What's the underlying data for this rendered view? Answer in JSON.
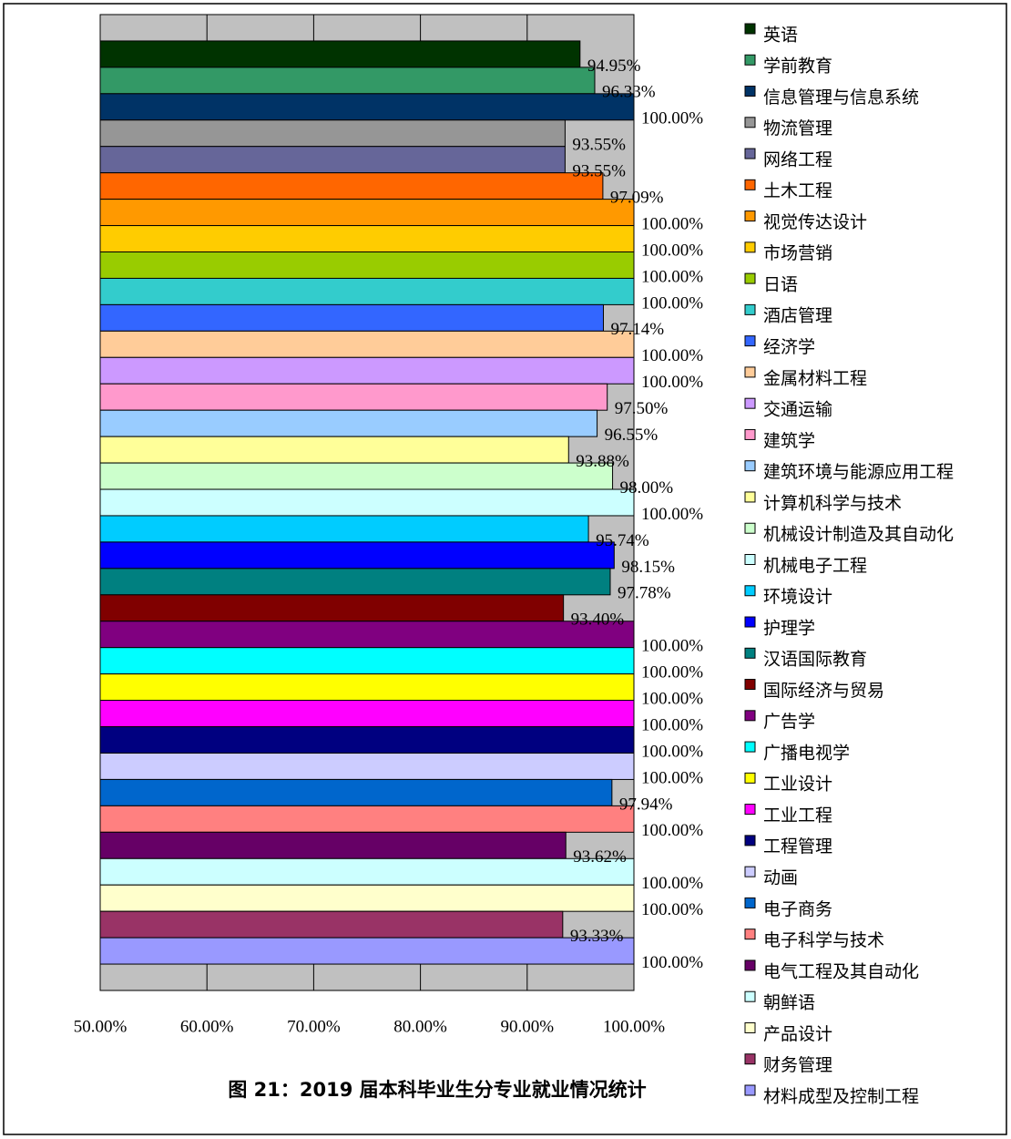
{
  "chart_data": {
    "type": "bar",
    "orientation": "horizontal",
    "title": "图 21：2019 届本科毕业生分专业就业情况统计",
    "categories": [
      "英语",
      "学前教育",
      "信息管理与信息系统",
      "物流管理",
      "网络工程",
      "土木工程",
      "视觉传达设计",
      "市场营销",
      "日语",
      "酒店管理",
      "经济学",
      "金属材料工程",
      "交通运输",
      "建筑学",
      "建筑环境与能源应用工程",
      "计算机科学与技术",
      "机械设计制造及其自动化",
      "机械电子工程",
      "环境设计",
      "护理学",
      "汉语国际教育",
      "国际经济与贸易",
      "广告学",
      "广播电视学",
      "工业设计",
      "工业工程",
      "工程管理",
      "动画",
      "电子商务",
      "电子科学与技术",
      "电气工程及其自动化",
      "朝鲜语",
      "产品设计",
      "财务管理",
      "材料成型及控制工程"
    ],
    "values": [
      94.95,
      96.33,
      100,
      93.55,
      93.55,
      97.09,
      100,
      100,
      100,
      100,
      97.14,
      100,
      100,
      97.5,
      96.55,
      93.88,
      98,
      100,
      95.74,
      98.15,
      97.78,
      93.4,
      100,
      100,
      100,
      100,
      100,
      100,
      97.94,
      100,
      93.62,
      100,
      100,
      93.33,
      100
    ],
    "value_labels": [
      "94.95%",
      "96.33%",
      "100.00%",
      "93.55%",
      "93.55%",
      "97.09%",
      "100.00%",
      "100.00%",
      "100.00%",
      "100.00%",
      "97.14%",
      "100.00%",
      "100.00%",
      "97.50%",
      "96.55%",
      "93.88%",
      "98.00%",
      "100.00%",
      "95.74%",
      "98.15%",
      "97.78%",
      "93.40%",
      "100.00%",
      "100.00%",
      "100.00%",
      "100.00%",
      "100.00%",
      "100.00%",
      "97.94%",
      "100.00%",
      "93.62%",
      "100.00%",
      "100.00%",
      "93.33%",
      "100.00%"
    ],
    "colors": [
      "#003300",
      "#339966",
      "#003366",
      "#969696",
      "#666699",
      "#FF6600",
      "#FF9900",
      "#FFCC00",
      "#99CC00",
      "#33CCCC",
      "#3366FF",
      "#FFCC99",
      "#CC99FF",
      "#FF99CC",
      "#99CCFF",
      "#FFFF99",
      "#CCFFCC",
      "#CCFFFF",
      "#00CCFF",
      "#0000FF",
      "#008080",
      "#800000",
      "#800080",
      "#00FFFF",
      "#FFFF00",
      "#FF00FF",
      "#000080",
      "#CCCCFF",
      "#0066CC",
      "#FF8080",
      "#660066",
      "#CCFFFF",
      "#FFFFCC",
      "#993366",
      "#9999FF"
    ],
    "xlim": [
      50,
      100
    ],
    "xticks": [
      {
        "value": 50,
        "label": "50.00%"
      },
      {
        "value": 60,
        "label": "60.00%"
      },
      {
        "value": 70,
        "label": "70.00%"
      },
      {
        "value": 80,
        "label": "80.00%"
      },
      {
        "value": 90,
        "label": "90.00%"
      },
      {
        "value": 100,
        "label": "100.00%"
      }
    ],
    "grid": true,
    "legend": "right"
  }
}
